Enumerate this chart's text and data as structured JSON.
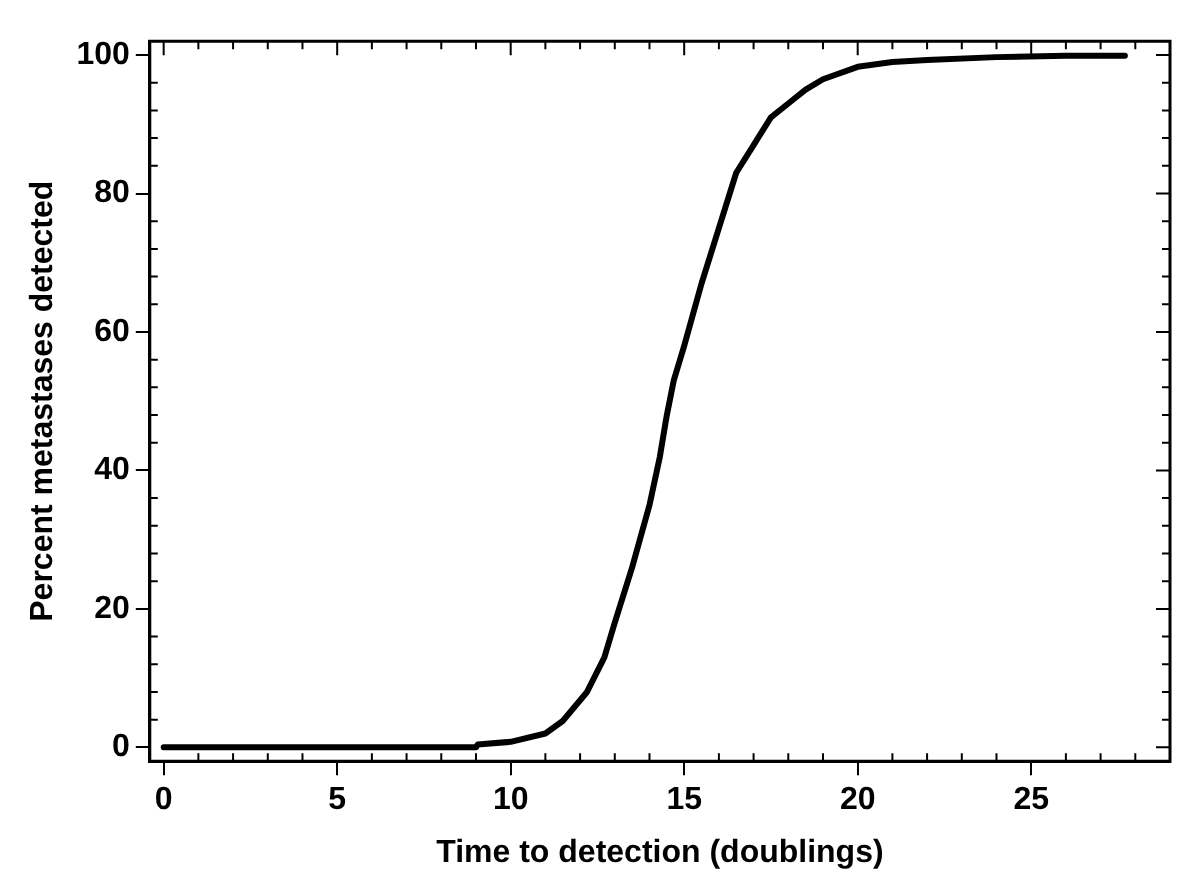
{
  "chart_data": {
    "type": "line",
    "xlabel": "Time to detection (doublings)",
    "ylabel": "Percent metastases detected",
    "x": [
      0,
      9,
      9.05,
      10,
      11,
      11.5,
      12.2,
      12.7,
      13,
      13.5,
      14,
      14.3,
      14.5,
      14.7,
      15,
      15.5,
      16,
      16.5,
      17,
      17.5,
      18,
      18.5,
      19,
      20,
      21,
      22,
      24,
      26,
      27.7
    ],
    "series": [
      {
        "color": "#000000",
        "values": [
          0,
          0,
          0.4,
          0.8,
          2,
          3.8,
          8,
          13,
          18,
          26,
          35,
          42,
          48,
          53,
          58,
          67,
          75,
          83,
          87,
          91,
          93,
          95,
          96.5,
          98.3,
          99,
          99.3,
          99.7,
          99.9,
          99.9
        ]
      }
    ],
    "xlim": [
      -0.4,
      29
    ],
    "ylim": [
      -2,
      102
    ],
    "xticks": [
      0,
      5,
      10,
      15,
      20,
      25
    ],
    "yticks": [
      0,
      20,
      40,
      60,
      80,
      100
    ],
    "grid": false,
    "legend": false,
    "marker": "none",
    "line_style": "solid"
  }
}
